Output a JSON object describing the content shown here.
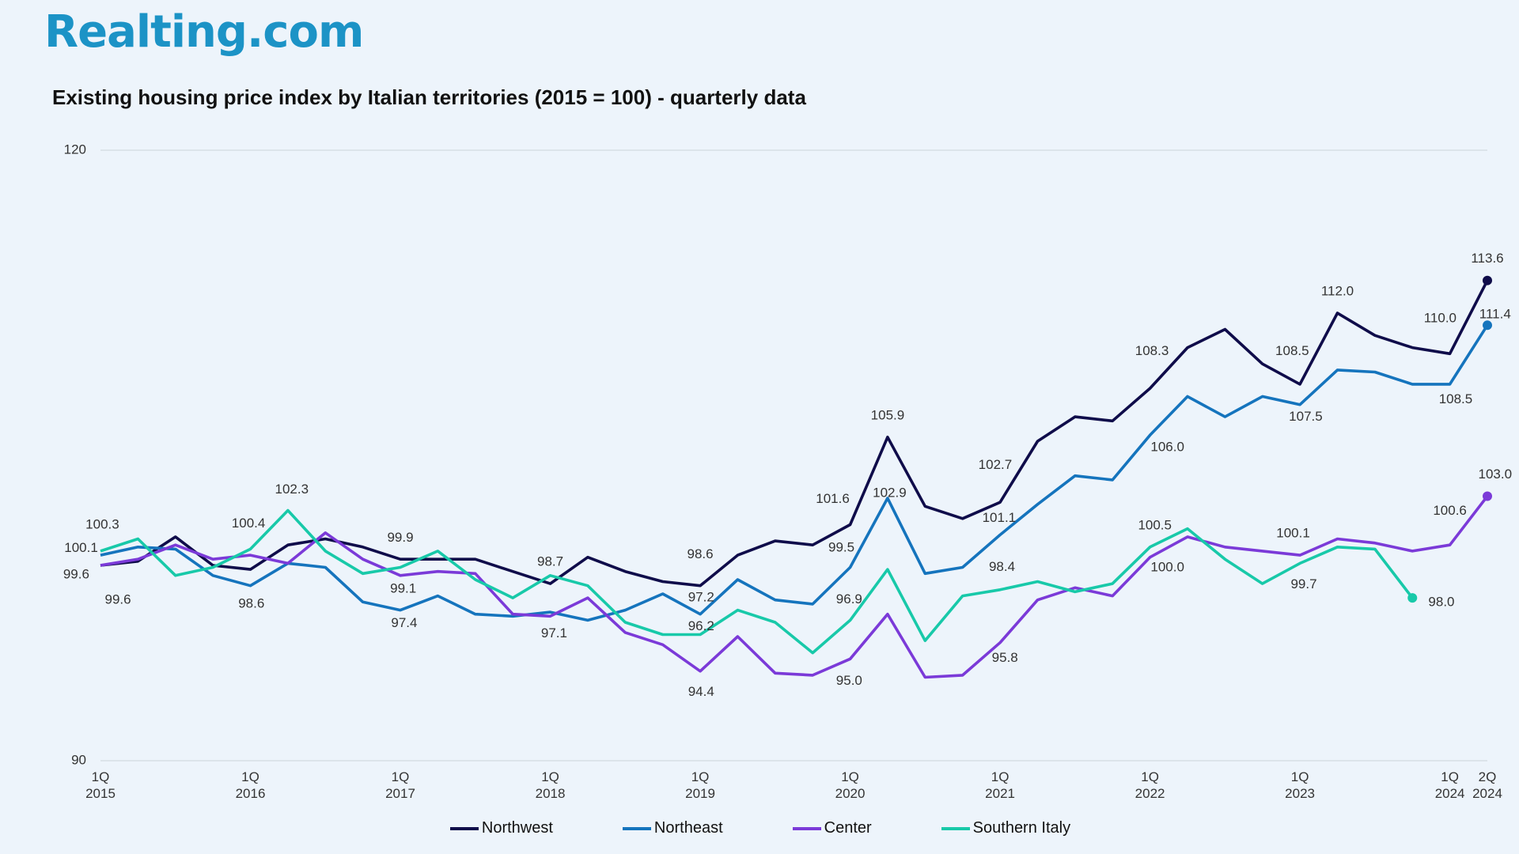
{
  "logo": "Realting.com",
  "chart_data": {
    "type": "line",
    "title": "Existing housing price index by Italian territories (2015 = 100) - quarterly data",
    "categories": [
      "1Q 2015",
      null,
      null,
      null,
      "1Q 2016",
      null,
      null,
      null,
      "1Q 2017",
      null,
      null,
      null,
      "1Q 2018",
      null,
      null,
      null,
      "1Q 2019",
      null,
      null,
      null,
      "1Q 2020",
      null,
      null,
      null,
      "1Q 2021",
      null,
      null,
      null,
      "1Q 2022",
      null,
      null,
      null,
      "1Q 2023",
      null,
      null,
      null,
      "1Q 2024",
      "2Q 2024"
    ],
    "ylim": [
      90,
      120
    ],
    "yticks": [
      90,
      120
    ],
    "grid": true,
    "series": [
      {
        "name": "Northwest",
        "color": "#0f0c4a",
        "values": [
          99.6,
          99.8,
          101.0,
          99.6,
          99.4,
          100.6,
          100.9,
          100.5,
          99.9,
          99.9,
          99.9,
          99.3,
          98.7,
          100.0,
          99.3,
          98.8,
          98.6,
          100.1,
          100.8,
          100.6,
          101.6,
          105.9,
          102.5,
          101.9,
          102.7,
          105.7,
          106.9,
          106.7,
          108.3,
          110.3,
          111.2,
          109.5,
          108.5,
          112.0,
          110.9,
          110.3,
          110.0,
          113.6
        ],
        "value_labels": [
          "99.6",
          null,
          null,
          null,
          null,
          null,
          null,
          null,
          "99.9",
          null,
          null,
          null,
          "98.7",
          null,
          null,
          null,
          "98.6",
          null,
          null,
          null,
          "101.6",
          "105.9",
          null,
          null,
          "102.7",
          null,
          null,
          null,
          "108.3",
          null,
          null,
          null,
          "108.5",
          "112.0",
          null,
          null,
          "110.0",
          "113.6"
        ]
      },
      {
        "name": "Northeast",
        "color": "#1574bd",
        "values": [
          100.1,
          100.5,
          100.4,
          99.1,
          98.6,
          99.7,
          99.5,
          97.8,
          97.4,
          98.1,
          97.2,
          97.1,
          97.3,
          96.9,
          97.4,
          98.2,
          97.2,
          98.9,
          97.9,
          97.7,
          99.5,
          102.9,
          99.2,
          99.5,
          101.1,
          102.6,
          104.0,
          103.8,
          106.0,
          107.9,
          106.9,
          107.9,
          107.5,
          109.2,
          109.1,
          108.5,
          108.5,
          111.4
        ],
        "value_labels": [
          "100.1",
          null,
          null,
          null,
          "98.6",
          null,
          null,
          null,
          "97.4",
          null,
          null,
          null,
          null,
          null,
          null,
          null,
          "97.2",
          null,
          null,
          null,
          "99.5",
          "102.9",
          null,
          null,
          "101.1",
          null,
          null,
          null,
          "106.0",
          null,
          null,
          null,
          "107.5",
          null,
          null,
          null,
          "108.5",
          "111.4"
        ]
      },
      {
        "name": "Center",
        "color": "#7b3ad8",
        "values": [
          99.6,
          99.9,
          100.6,
          99.9,
          100.1,
          99.7,
          101.2,
          99.9,
          99.1,
          99.3,
          99.2,
          97.2,
          97.1,
          98.0,
          96.3,
          95.7,
          94.4,
          96.1,
          94.3,
          94.2,
          95.0,
          97.2,
          94.1,
          94.2,
          95.8,
          97.9,
          98.5,
          98.1,
          100.0,
          101.0,
          100.5,
          100.3,
          100.1,
          100.9,
          100.7,
          100.3,
          100.6,
          103.0
        ],
        "value_labels": [
          "99.6",
          null,
          null,
          null,
          null,
          null,
          null,
          null,
          "99.1",
          null,
          null,
          null,
          "97.1",
          null,
          null,
          null,
          "94.4",
          null,
          null,
          null,
          "95.0",
          null,
          null,
          null,
          "95.8",
          null,
          null,
          null,
          "100.0",
          null,
          null,
          null,
          "100.1",
          null,
          null,
          null,
          "100.6",
          "103.0"
        ]
      },
      {
        "name": "Southern Italy",
        "color": "#18c9a9",
        "values": [
          100.3,
          100.9,
          99.1,
          99.5,
          100.4,
          102.3,
          100.3,
          99.2,
          99.5,
          100.3,
          98.9,
          98.0,
          99.1,
          98.6,
          96.8,
          96.2,
          96.2,
          97.4,
          96.8,
          95.3,
          96.9,
          99.4,
          95.9,
          98.1,
          98.4,
          98.8,
          98.3,
          98.7,
          100.5,
          101.4,
          99.9,
          98.7,
          99.7,
          100.5,
          100.4,
          98.0,
          null,
          null
        ],
        "value_labels": [
          "100.3",
          null,
          null,
          null,
          "100.4",
          "102.3",
          null,
          null,
          null,
          null,
          null,
          null,
          null,
          null,
          null,
          null,
          "96.2",
          null,
          null,
          null,
          "96.9",
          null,
          null,
          null,
          "98.4",
          null,
          null,
          null,
          "100.5",
          null,
          null,
          null,
          "99.7",
          null,
          null,
          "98.0",
          null,
          null
        ]
      }
    ]
  }
}
